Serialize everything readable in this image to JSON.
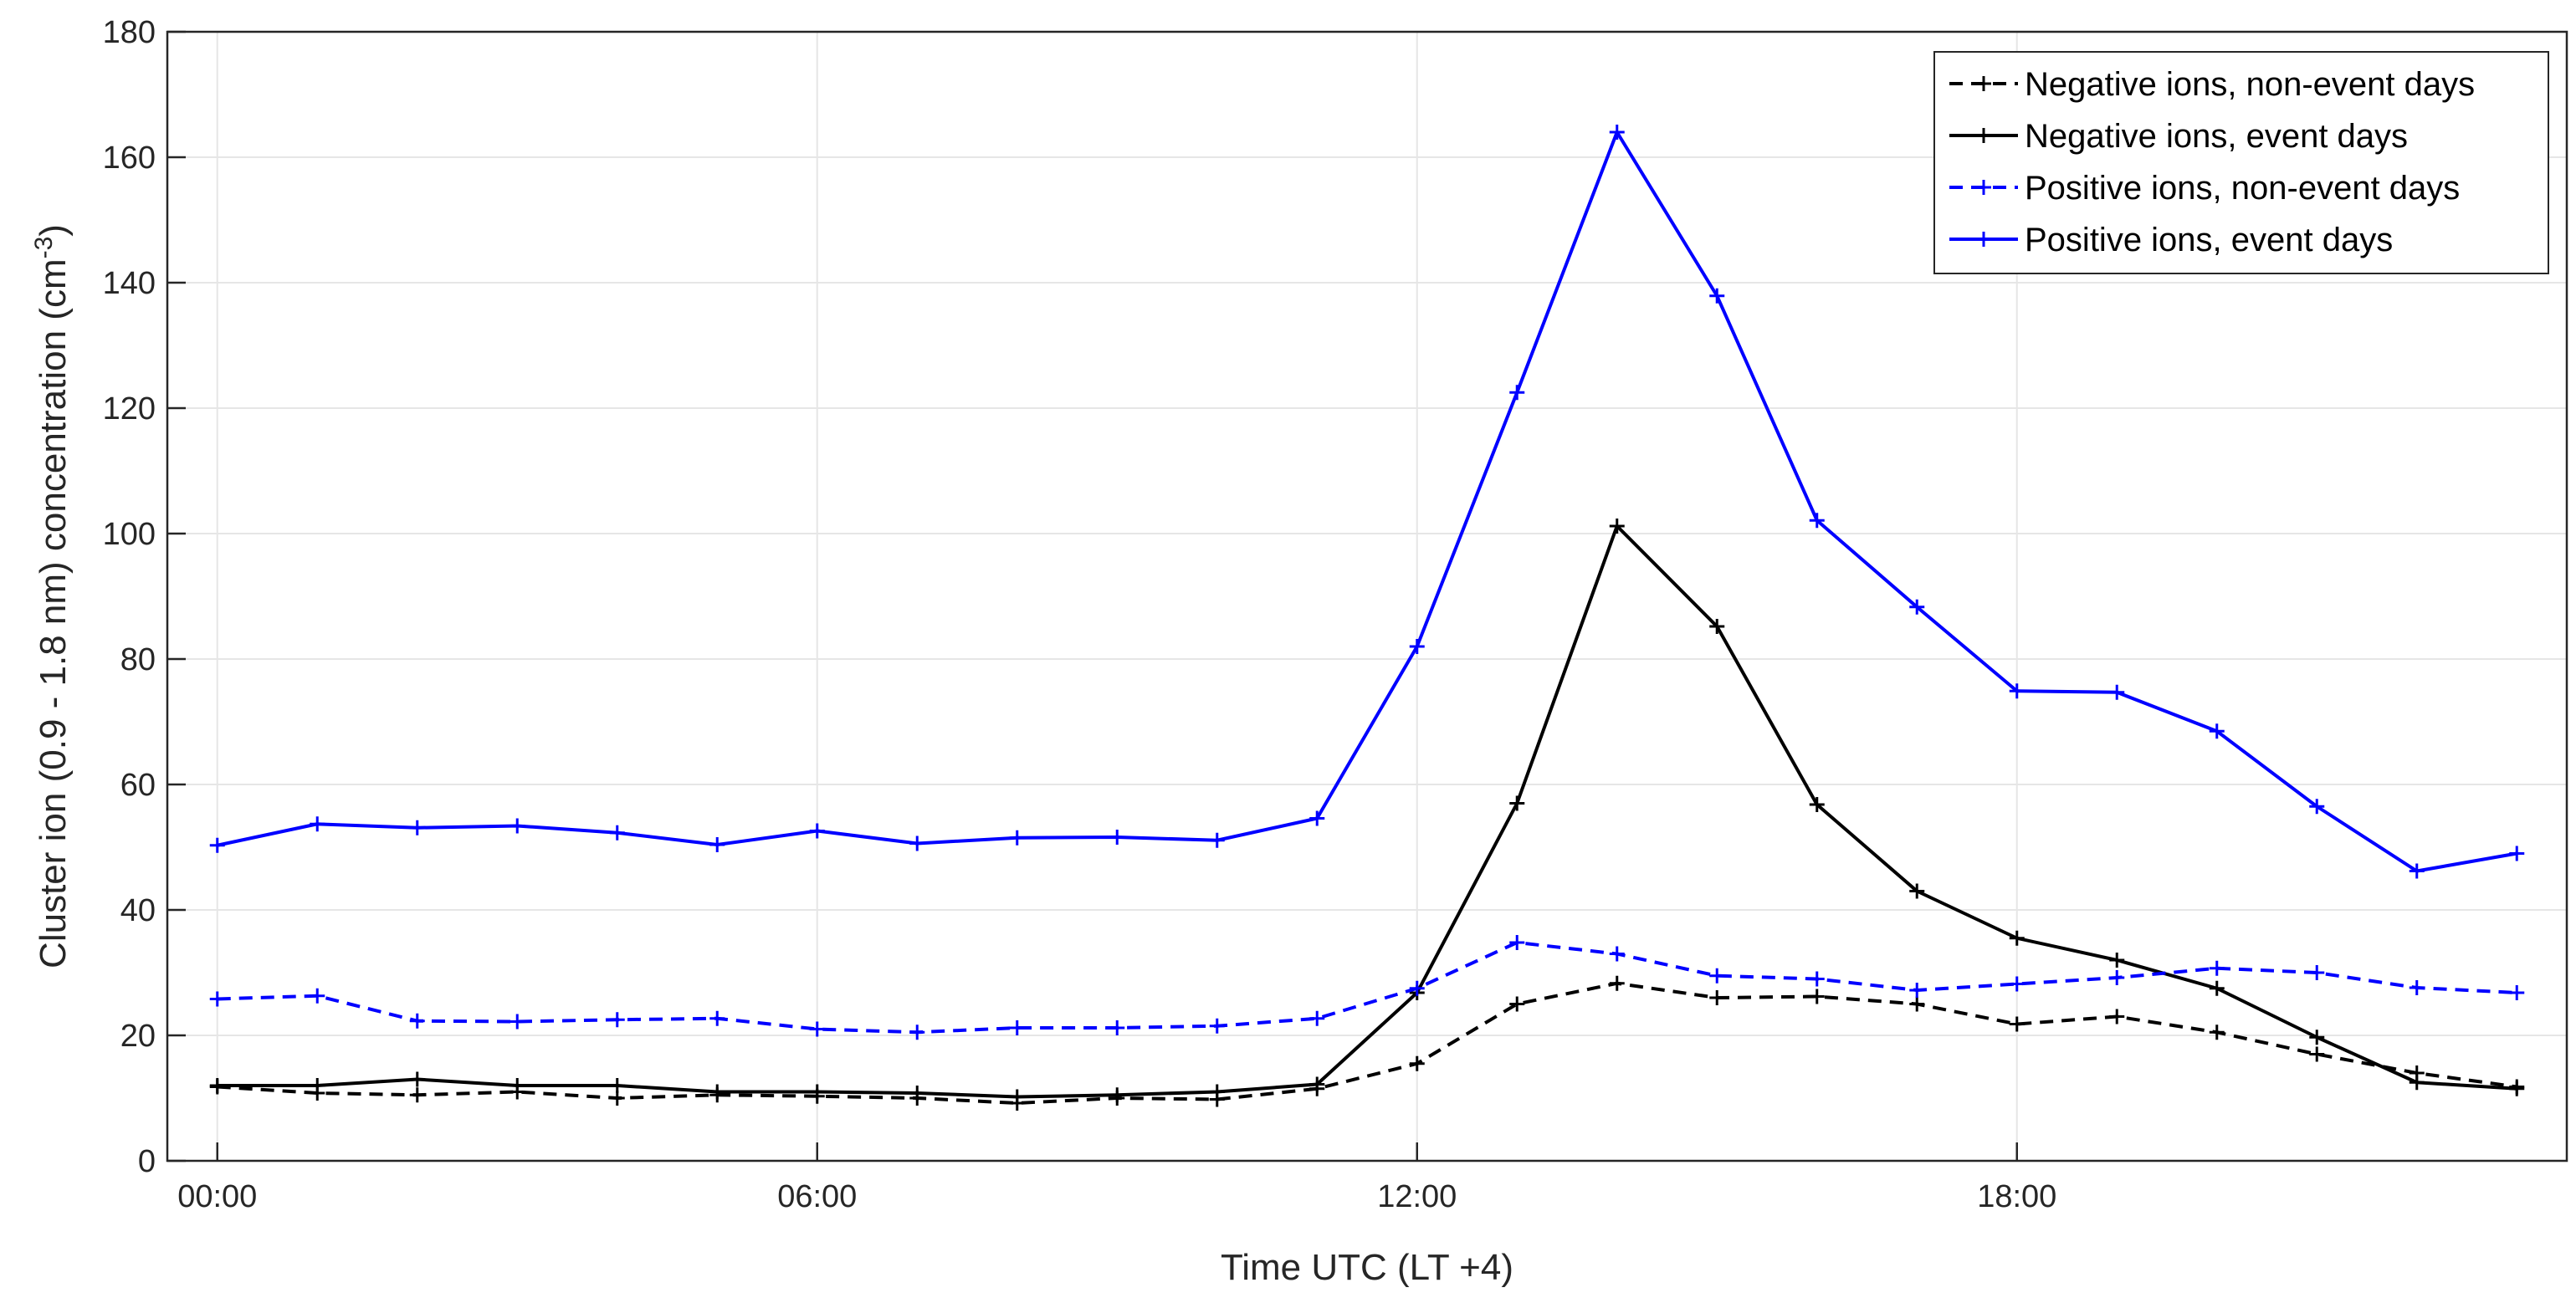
{
  "chart_data": {
    "type": "line",
    "xlabel": "Time UTC (LT +4)",
    "ylabel_main": "Cluster ion (0.9 - 1.8 nm) concentration (cm",
    "ylabel_sup": "-3",
    "ylabel_close": ")",
    "xlim": [
      -0.5,
      23.5
    ],
    "ylim": [
      0,
      180
    ],
    "xticks": [
      0,
      6,
      12,
      18
    ],
    "xtick_labels": [
      "00:00",
      "06:00",
      "12:00",
      "18:00"
    ],
    "yticks": [
      0,
      20,
      40,
      60,
      80,
      100,
      120,
      140,
      160,
      180
    ],
    "ytick_labels": [
      "0",
      "20",
      "40",
      "60",
      "80",
      "100",
      "120",
      "140",
      "160",
      "180"
    ],
    "grid": true,
    "legend_position": "top-right",
    "x": [
      0,
      1,
      2,
      3,
      4,
      5,
      6,
      7,
      8,
      9,
      10,
      11,
      12,
      13,
      14,
      15,
      16,
      17,
      18,
      19,
      20,
      21,
      22,
      23
    ],
    "series": [
      {
        "name": "Negative ions, non-event days",
        "color": "#000000",
        "dashed": true,
        "values": [
          11.8,
          10.8,
          10.5,
          11.0,
          10.0,
          10.5,
          10.3,
          10.0,
          9.2,
          10.0,
          9.8,
          11.5,
          15.5,
          25.0,
          28.3,
          26.0,
          26.2,
          25.0,
          21.8,
          23.0,
          20.5,
          17.0,
          14.0,
          11.8
        ]
      },
      {
        "name": "Negative ions, event days",
        "color": "#000000",
        "dashed": false,
        "values": [
          12.0,
          12.0,
          13.0,
          12.0,
          12.0,
          11.0,
          11.0,
          10.8,
          10.2,
          10.5,
          11.0,
          12.2,
          26.8,
          57.0,
          101.2,
          85.2,
          56.8,
          43.0,
          35.5,
          32.0,
          27.5,
          19.7,
          12.5,
          11.5
        ]
      },
      {
        "name": "Positive ions, non-event days",
        "color": "#0000ff",
        "dashed": true,
        "values": [
          25.8,
          26.3,
          22.3,
          22.2,
          22.5,
          22.7,
          21.0,
          20.5,
          21.2,
          21.2,
          21.5,
          22.7,
          27.5,
          34.8,
          33.0,
          29.5,
          29.0,
          27.2,
          28.2,
          29.2,
          30.7,
          30.0,
          27.6,
          26.8
        ]
      },
      {
        "name": "Positive ions, event days",
        "color": "#0000ff",
        "dashed": false,
        "values": [
          50.3,
          53.7,
          53.1,
          53.4,
          52.3,
          50.4,
          52.6,
          50.6,
          51.5,
          51.6,
          51.1,
          54.6,
          82.0,
          122.5,
          164.0,
          137.9,
          102.1,
          88.3,
          74.9,
          74.7,
          68.5,
          56.5,
          46.2,
          49.0
        ]
      }
    ]
  }
}
